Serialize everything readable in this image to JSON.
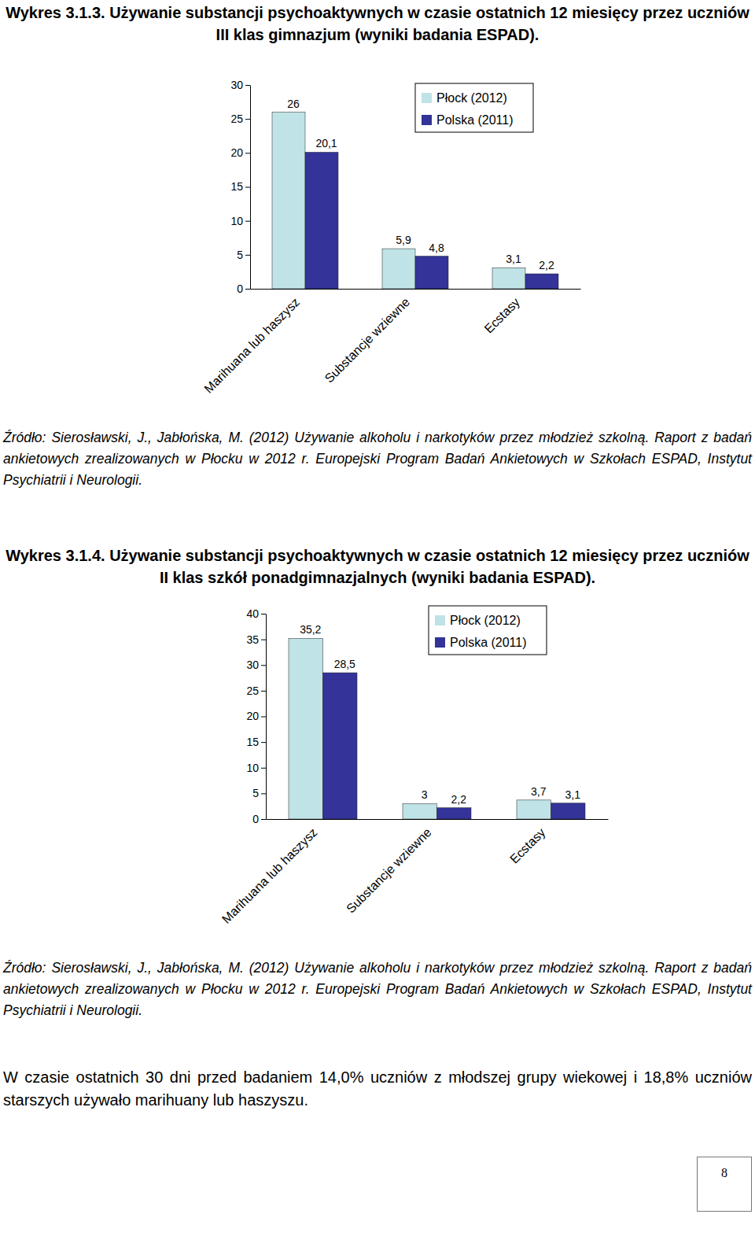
{
  "chart_data": [
    {
      "type": "bar",
      "title": "Wykres 3.1.3. Używanie substancji psychoaktywnych w czasie ostatnich 12 miesięcy przez uczniów III klas gimnazjum (wyniki badania ESPAD).",
      "source": "Źródło: Sierosławski, J., Jabłońska, M. (2012) Używanie alkoholu i narkotyków przez młodzież szkolną. Raport z badań ankietowych zrealizowanych w Płocku w 2012 r. Europejski Program Badań Ankietowych w Szkołach ESPAD, Instytut Psychiatrii i Neurologii.",
      "categories": [
        "Marihuana lub haszysz",
        "Substancje wziewne",
        "Ecstasy"
      ],
      "series": [
        {
          "name": "Płock (2012)",
          "color": "#bfe3e6",
          "values": [
            26,
            5.9,
            3.1
          ],
          "value_labels": [
            "26",
            "5,9",
            "3,1"
          ]
        },
        {
          "name": "Polska (2011)",
          "color": "#333399",
          "values": [
            20.1,
            4.8,
            2.2
          ],
          "value_labels": [
            "20,1",
            "4,8",
            "2,2"
          ]
        }
      ],
      "ylim": [
        0,
        30
      ],
      "yticks": [
        0,
        5,
        10,
        15,
        20,
        25,
        30
      ],
      "grid": false,
      "legend": "top-right",
      "data_labels": true
    },
    {
      "type": "bar",
      "title": "Wykres 3.1.4. Używanie substancji psychoaktywnych w czasie ostatnich 12 miesięcy przez uczniów II klas szkół ponadgimnazjalnych (wyniki badania ESPAD).",
      "source": "Źródło: Sierosławski, J., Jabłońska, M. (2012) Używanie alkoholu i narkotyków przez młodzież szkolną. Raport z badań ankietowych zrealizowanych w Płocku w 2012 r. Europejski Program Badań Ankietowych w Szkołach ESPAD, Instytut Psychiatrii i Neurologii.",
      "categories": [
        "Marihuana lub haszysz",
        "Substancje wziewne",
        "Ecstasy"
      ],
      "series": [
        {
          "name": "Płock (2012)",
          "color": "#bfe3e6",
          "values": [
            35.2,
            3,
            3.7
          ],
          "value_labels": [
            "35,2",
            "3",
            "3,7"
          ]
        },
        {
          "name": "Polska (2011)",
          "color": "#333399",
          "values": [
            28.5,
            2.2,
            3.1
          ],
          "value_labels": [
            "28,5",
            "2,2",
            "3,1"
          ]
        }
      ],
      "ylim": [
        0,
        40
      ],
      "yticks": [
        0,
        5,
        10,
        15,
        20,
        25,
        30,
        35,
        40
      ],
      "grid": false,
      "legend": "top-right",
      "data_labels": true
    }
  ],
  "paragraph": "W czasie ostatnich 30 dni przed badaniem 14,0% uczniów z młodszej grupy wiekowej i 18,8% uczniów starszych używało marihuany lub haszyszu.",
  "page_number": 8
}
